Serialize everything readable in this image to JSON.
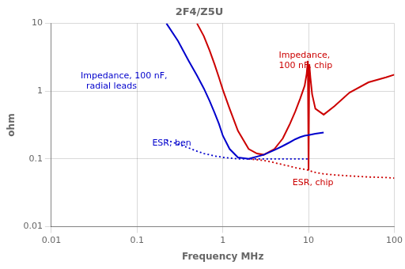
{
  "chart_data": {
    "type": "line",
    "title": "2F4/Z5U",
    "xlabel": "Frequency MHz",
    "ylabel": "ohm",
    "log": true,
    "grid": true,
    "xlim": [
      0.01,
      100
    ],
    "ylim": [
      0.01,
      10
    ],
    "xticks": [
      0.01,
      0.1,
      1,
      10,
      100
    ],
    "yticks": [
      0.01,
      0.1,
      1,
      10
    ],
    "series": [
      {
        "color": "#0000cc",
        "line_style": "solid",
        "x": [
          0.22,
          0.3,
          0.4,
          0.5,
          0.6,
          0.7,
          0.8,
          0.9,
          1.0,
          1.2,
          1.5,
          2.0,
          3.0,
          4.0,
          5.0,
          6.0,
          7.0,
          8.0,
          9.0,
          10.0,
          12.0,
          15.0
        ],
        "values": [
          10.0,
          5.5,
          2.8,
          1.7,
          1.1,
          0.72,
          0.48,
          0.33,
          0.22,
          0.14,
          0.105,
          0.1,
          0.115,
          0.135,
          0.155,
          0.175,
          0.195,
          0.21,
          0.22,
          0.225,
          0.235,
          0.245
        ]
      },
      {
        "color": "#0000cc",
        "line_style": "dotted",
        "x": [
          0.22,
          0.3,
          0.4,
          0.5,
          0.6,
          0.7,
          0.8,
          0.9,
          1.0,
          1.5,
          2.0,
          3.0,
          4.0,
          5.0,
          6.0,
          7.0,
          8.0,
          9.0,
          10.0
        ],
        "values": [
          0.19,
          0.165,
          0.145,
          0.13,
          0.12,
          0.115,
          0.11,
          0.108,
          0.105,
          0.1,
          0.1,
          0.1,
          0.1,
          0.1,
          0.1,
          0.1,
          0.1,
          0.1,
          0.1
        ]
      },
      {
        "color": "#cc0000",
        "line_style": "solid",
        "x": [
          0.5,
          0.6,
          0.7,
          0.8,
          0.9,
          1.0,
          1.2,
          1.5,
          2.0,
          2.5,
          3.0,
          4.0,
          5.0,
          6.0,
          7.0,
          8.0,
          9.0,
          9.5,
          9.8,
          10.0,
          10.2,
          10.5,
          11.0,
          12.0,
          15.0,
          20.0,
          30.0,
          50.0,
          80.0,
          100.0
        ],
        "values": [
          10.0,
          6.5,
          4.0,
          2.5,
          1.6,
          1.05,
          0.55,
          0.26,
          0.14,
          0.12,
          0.115,
          0.14,
          0.2,
          0.32,
          0.5,
          0.78,
          1.2,
          1.8,
          2.8,
          0.068,
          2.5,
          1.6,
          0.9,
          0.55,
          0.45,
          0.6,
          0.95,
          1.35,
          1.6,
          1.75
        ]
      },
      {
        "color": "#cc0000",
        "line_style": "dotted",
        "x": [
          2.0,
          3.0,
          4.0,
          5.0,
          6.0,
          7.0,
          8.0,
          9.0,
          10.0,
          11.0,
          12.0,
          15.0,
          20.0,
          30.0,
          50.0,
          80.0,
          100.0
        ],
        "values": [
          0.1,
          0.095,
          0.088,
          0.082,
          0.078,
          0.074,
          0.072,
          0.07,
          0.068,
          0.065,
          0.063,
          0.06,
          0.058,
          0.056,
          0.054,
          0.053,
          0.052
        ]
      }
    ],
    "annotations": [
      {
        "text": "Impedance, 100 nF,\n  radial leads",
        "x": 0.022,
        "y": 1.4,
        "color": "#0000cc"
      },
      {
        "text": "Impedance,\n100 nF, chip",
        "x": 4.5,
        "y": 2.8,
        "color": "#cc0000"
      },
      {
        "text": "ESR, ben",
        "x": 0.15,
        "y": 0.17,
        "color": "#0000cc"
      },
      {
        "text": "ESR, chip",
        "x": 6.5,
        "y": 0.044,
        "color": "#cc0000"
      }
    ]
  }
}
